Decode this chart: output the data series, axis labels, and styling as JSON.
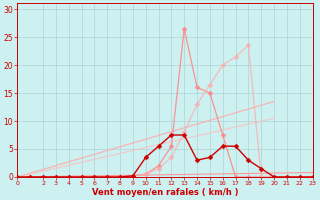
{
  "background_color": "#cdf0f0",
  "grid_color": "#aacccc",
  "xlabel": "Vent moyen/en rafales ( km/h )",
  "xlim": [
    0,
    23
  ],
  "ylim": [
    0,
    31
  ],
  "yticks": [
    0,
    5,
    10,
    15,
    20,
    25,
    30
  ],
  "xticks": [
    0,
    2,
    3,
    4,
    5,
    6,
    7,
    8,
    9,
    10,
    11,
    12,
    13,
    14,
    15,
    16,
    17,
    18,
    19,
    20,
    21,
    22,
    23
  ],
  "series": [
    {
      "x": [
        0,
        23
      ],
      "y": [
        0,
        0.8
      ],
      "color": "#ff9999",
      "alpha": 1.0,
      "linewidth": 0.8,
      "marker": null,
      "markersize": 0
    },
    {
      "x": [
        0,
        20
      ],
      "y": [
        0,
        13.5
      ],
      "color": "#ffaaaa",
      "alpha": 0.85,
      "linewidth": 0.9,
      "marker": null,
      "markersize": 0
    },
    {
      "x": [
        0,
        20
      ],
      "y": [
        0,
        10.5
      ],
      "color": "#ffbbbb",
      "alpha": 0.7,
      "linewidth": 0.9,
      "marker": null,
      "markersize": 0
    },
    {
      "x": [
        0,
        1,
        2,
        3,
        4,
        5,
        6,
        7,
        8,
        9,
        10,
        11,
        12,
        13,
        14,
        15,
        16,
        17,
        18,
        19,
        20,
        21,
        22,
        23
      ],
      "y": [
        0,
        0,
        0,
        0,
        0,
        0,
        0,
        0,
        0,
        0.2,
        0.5,
        2.0,
        5.5,
        26.5,
        16.0,
        15.0,
        7.5,
        0,
        0,
        0,
        0,
        0,
        0,
        0
      ],
      "color": "#ff8888",
      "alpha": 0.9,
      "linewidth": 0.9,
      "marker": "D",
      "markersize": 2.5
    },
    {
      "x": [
        0,
        1,
        2,
        3,
        4,
        5,
        6,
        7,
        8,
        9,
        10,
        11,
        12,
        13,
        14,
        15,
        16,
        17,
        18,
        19,
        20,
        21,
        22,
        23
      ],
      "y": [
        0,
        0,
        0,
        0,
        0,
        0,
        0,
        0,
        0,
        0.2,
        0.5,
        1.5,
        3.5,
        8.0,
        13.0,
        16.5,
        20.0,
        21.5,
        23.5,
        0,
        0,
        0,
        0,
        0
      ],
      "color": "#ffaaaa",
      "alpha": 0.75,
      "linewidth": 0.9,
      "marker": "D",
      "markersize": 2.5
    },
    {
      "x": [
        0,
        1,
        2,
        3,
        4,
        5,
        6,
        7,
        8,
        9,
        10,
        11,
        12,
        13,
        14,
        15,
        16,
        17,
        18,
        19,
        20,
        21,
        22,
        23
      ],
      "y": [
        0,
        0,
        0,
        0,
        0,
        0,
        0,
        0,
        0,
        0.2,
        3.5,
        5.5,
        7.5,
        7.5,
        3.0,
        3.5,
        5.5,
        5.5,
        3.0,
        1.5,
        0,
        0,
        0,
        0
      ],
      "color": "#cc0000",
      "alpha": 1.0,
      "linewidth": 1.0,
      "marker": "D",
      "markersize": 2.5
    }
  ]
}
